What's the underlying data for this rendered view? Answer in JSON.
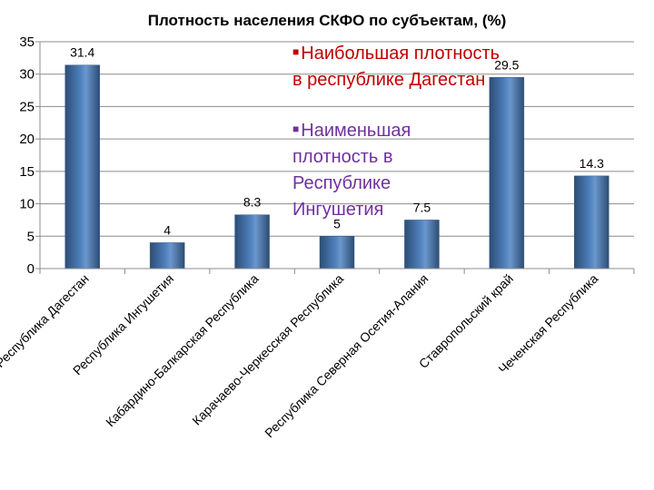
{
  "chart_data": {
    "type": "bar",
    "title": "Плотность населения СКФО по субъектам, (%)",
    "categories": [
      "Республика Дагестан",
      "Республика Ингушетия",
      "Кабардино-Балкарская Республика",
      "Карачаево-Черкесская Республика",
      "Республика Северная Осетия-Алания",
      "Ставропольский край",
      "Чеченская Республика"
    ],
    "values": [
      31.4,
      4,
      8.3,
      5,
      7.5,
      29.5,
      14.3
    ],
    "data_labels": [
      "31.4",
      "4",
      "8.3",
      "5",
      "7.5",
      "29.5",
      "14.3"
    ],
    "ylim": [
      0,
      35
    ],
    "yticks": [
      0,
      5,
      10,
      15,
      20,
      25,
      30,
      35
    ],
    "grid": true,
    "bar_color": "#4f81bd",
    "annotations": [
      {
        "text": "Наибольшая плотность в республике Дагестан",
        "color": "#c00000"
      },
      {
        "text": "Наименьшая плотность в Республике Ингушетия",
        "color": "#7030a0"
      }
    ]
  }
}
